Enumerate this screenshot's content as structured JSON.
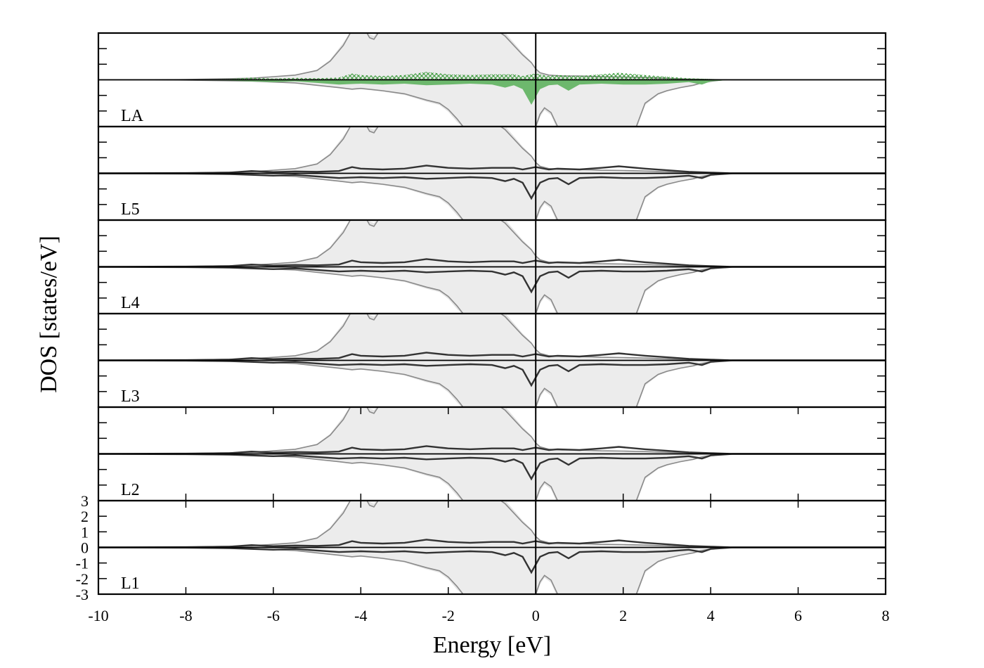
{
  "chart_data": {
    "type": "line",
    "xlabel": "Energy [eV]",
    "ylabel": "DOS [states/eV]",
    "xlim": [
      -10,
      8
    ],
    "ylim": [
      -3,
      3
    ],
    "x_ticks": [
      "-10",
      "-8",
      "-6",
      "-4",
      "-2",
      "0",
      "2",
      "4",
      "6",
      "8"
    ],
    "y_ticks": [
      "3",
      "2",
      "1",
      "0",
      "-1",
      "-2",
      "-3"
    ],
    "fermi_level": 0,
    "panels": [
      {
        "label": "LA",
        "layer_style": "green-fill"
      },
      {
        "label": "L5",
        "layer_style": "dark-line"
      },
      {
        "label": "L4",
        "layer_style": "dark-line"
      },
      {
        "label": "L3",
        "layer_style": "dark-line"
      },
      {
        "label": "L2",
        "layer_style": "dark-line"
      },
      {
        "label": "L1",
        "layer_style": "dark-line"
      }
    ],
    "reference_dos": {
      "up": {
        "x": [
          -10,
          -8,
          -6.5,
          -5.5,
          -5,
          -4.7,
          -4.4,
          -4.2,
          -4.05,
          -3.9,
          -3.8,
          -3.7,
          -3.55,
          -3.3,
          -3,
          -2.5,
          -2,
          -1.5,
          -1.2,
          -0.9,
          -0.7,
          -0.5,
          -0.3,
          -0.1,
          0,
          0.1,
          0.3,
          0.6,
          1,
          1.5,
          2,
          2.5,
          3,
          3.5,
          4,
          4.5,
          8
        ],
        "y": [
          0,
          0.02,
          0.1,
          0.3,
          0.6,
          1.2,
          2.2,
          3.2,
          3.8,
          3.2,
          2.7,
          2.6,
          3.3,
          4,
          4,
          4,
          4,
          4,
          3.8,
          3.2,
          2.8,
          2.2,
          1.6,
          1.1,
          0.7,
          0.45,
          0.3,
          0.25,
          0.25,
          0.2,
          0.18,
          0.15,
          0.1,
          0.05,
          0.02,
          0,
          0
        ]
      },
      "down": {
        "x": [
          -10,
          -8,
          -6.5,
          -5.5,
          -5,
          -4.5,
          -4.2,
          -4,
          -3.5,
          -3,
          -2.5,
          -2.2,
          -2,
          -1.8,
          -1.6,
          -1.4,
          -1.2,
          -1,
          -0.8,
          -0.6,
          -0.4,
          -0.2,
          -0.05,
          0,
          0.1,
          0.2,
          0.35,
          0.5,
          0.6,
          0.8,
          1,
          1.5,
          2,
          2.2,
          2.3,
          2.5,
          2.8,
          3,
          3.3,
          3.6,
          3.8,
          4,
          4.3,
          8
        ],
        "y": [
          0,
          -0.02,
          -0.08,
          -0.2,
          -0.35,
          -0.5,
          -0.6,
          -0.55,
          -0.7,
          -0.9,
          -1.3,
          -1.5,
          -1.9,
          -2.5,
          -3.3,
          -4,
          -4,
          -4,
          -4,
          -4,
          -4,
          -4,
          -4,
          -3,
          -2.2,
          -1.8,
          -2.1,
          -3,
          -4,
          -4,
          -4,
          -4,
          -4,
          -4,
          -3,
          -1.5,
          -0.9,
          -0.7,
          -0.5,
          -0.35,
          -0.2,
          -0.1,
          0,
          0
        ]
      }
    },
    "layer_dos": {
      "up": {
        "x": [
          -10,
          -8,
          -7,
          -6.5,
          -6,
          -5.5,
          -5,
          -4.5,
          -4.2,
          -4,
          -3.5,
          -3,
          -2.5,
          -2,
          -1.5,
          -1,
          -0.5,
          -0.3,
          0,
          0.3,
          0.5,
          1,
          1.5,
          1.9,
          2.5,
          3,
          3.5,
          4,
          4.5,
          8
        ],
        "y": [
          0,
          0.02,
          0.05,
          0.15,
          0.08,
          0.12,
          0.1,
          0.15,
          0.4,
          0.3,
          0.25,
          0.3,
          0.5,
          0.35,
          0.3,
          0.35,
          0.35,
          0.25,
          0.4,
          0.25,
          0.3,
          0.25,
          0.35,
          0.45,
          0.3,
          0.2,
          0.1,
          0.05,
          0,
          0
        ]
      },
      "down": {
        "x": [
          -10,
          -8,
          -7,
          -6.5,
          -6,
          -5.5,
          -5,
          -4.5,
          -4,
          -3.5,
          -3,
          -2.5,
          -2,
          -1.5,
          -1,
          -0.7,
          -0.5,
          -0.3,
          -0.1,
          0.1,
          0.3,
          0.5,
          0.75,
          1,
          1.5,
          2,
          2.5,
          3,
          3.5,
          3.8,
          4,
          4.5,
          8
        ],
        "y": [
          0,
          -0.02,
          -0.05,
          -0.1,
          -0.15,
          -0.1,
          -0.2,
          -0.3,
          -0.25,
          -0.3,
          -0.25,
          -0.35,
          -0.3,
          -0.25,
          -0.3,
          -0.5,
          -0.35,
          -0.6,
          -1.6,
          -0.6,
          -0.35,
          -0.3,
          -0.7,
          -0.3,
          -0.25,
          -0.3,
          -0.3,
          -0.25,
          -0.15,
          -0.3,
          -0.1,
          0,
          0
        ]
      }
    }
  }
}
